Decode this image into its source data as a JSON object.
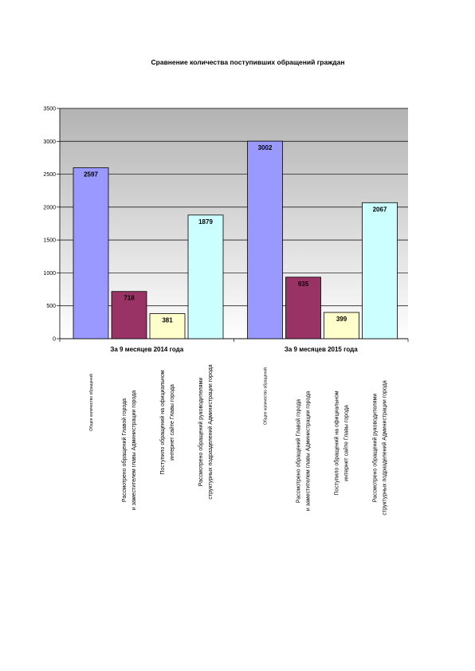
{
  "chart_data": {
    "type": "bar",
    "title": "Сравнение количества поступивших обращений граждан",
    "categories": [
      "За 9 месяцев 2014 года",
      "За 9 месяцев 2015 года"
    ],
    "series": [
      {
        "color": "#9999ff",
        "values": [
          2597,
          3002
        ]
      },
      {
        "color": "#993366",
        "values": [
          718,
          935
        ]
      },
      {
        "color": "#ffffcc",
        "values": [
          381,
          399
        ]
      },
      {
        "color": "#ccffff",
        "values": [
          1879,
          2067
        ]
      }
    ],
    "bar_labels": [
      [
        [
          "Общее количество обращений"
        ],
        [
          "Рассмотрено обращений Главой города",
          "и заместителем главы Администрации города"
        ],
        [
          "Поступило обращений на  официальном",
          "интернет сайте  Главы города"
        ],
        [
          "Рассмотрено обращений руководителями",
          "структурных подразделений Администрации города"
        ]
      ],
      [
        [
          "Общее количество обращений"
        ],
        [
          "Рассмотрено обращений Главой города",
          "и заместителем главы Администрации города"
        ],
        [
          "Поступило обращений на официальном",
          "интернет сайте Главы города"
        ],
        [
          "Рассмотрено обращений руководителями",
          "структурных подразделений Администрации города"
        ]
      ]
    ],
    "ylim": [
      0,
      3500
    ],
    "yticks": [
      0,
      500,
      1000,
      1500,
      2000,
      2500,
      3000,
      3500
    ],
    "grid": true
  }
}
